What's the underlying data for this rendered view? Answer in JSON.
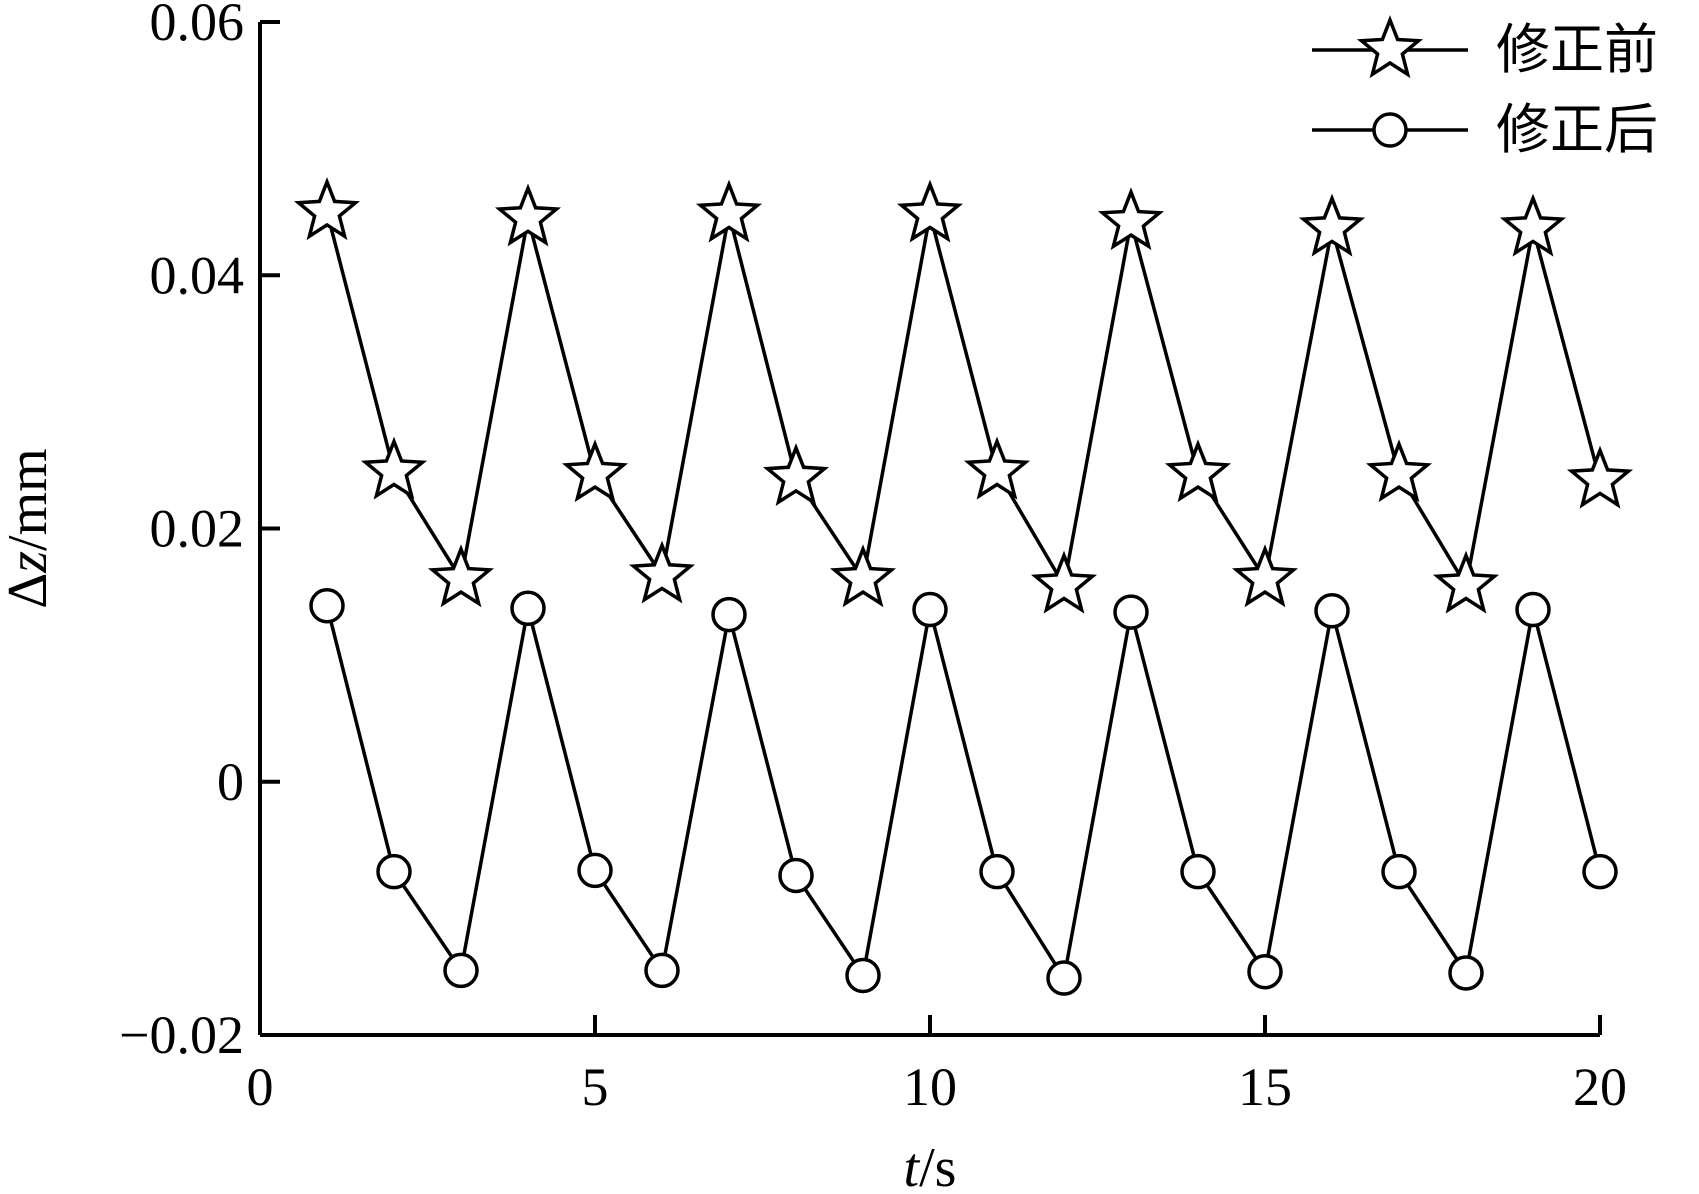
{
  "chart_data": {
    "type": "line",
    "title": "",
    "xlabel": {
      "italic": "t",
      "rest": "/s"
    },
    "ylabel": {
      "prefix": "Δ",
      "italic": "z",
      "rest": "/mm"
    },
    "xlim": [
      0,
      20
    ],
    "ylim": [
      -0.02,
      0.06
    ],
    "xticks": [
      0,
      5,
      10,
      15,
      20
    ],
    "xtick_labels": [
      "0",
      "5",
      "10",
      "15",
      "20"
    ],
    "yticks": [
      -0.02,
      0,
      0.02,
      0.04,
      0.06
    ],
    "ytick_labels": [
      "−0.02",
      "0",
      "0.02",
      "0.04",
      "0.06"
    ],
    "grid": false,
    "legend_position": "top-right",
    "x": [
      1,
      2,
      3,
      4,
      5,
      6,
      7,
      8,
      9,
      10,
      11,
      12,
      13,
      14,
      15,
      16,
      17,
      18,
      19,
      20
    ],
    "series": [
      {
        "name": "修正前",
        "marker": "star",
        "values": [
          0.045,
          0.0245,
          0.016,
          0.0445,
          0.0243,
          0.0163,
          0.0448,
          0.024,
          0.016,
          0.0448,
          0.0245,
          0.0155,
          0.0442,
          0.0243,
          0.016,
          0.0437,
          0.0243,
          0.0155,
          0.0437,
          0.0238
        ]
      },
      {
        "name": "修正后",
        "marker": "circle",
        "values": [
          0.0139,
          -0.0071,
          -0.0149,
          0.0137,
          -0.007,
          -0.0149,
          0.0132,
          -0.0074,
          -0.0153,
          0.0136,
          -0.0071,
          -0.0155,
          0.0134,
          -0.0071,
          -0.015,
          0.0135,
          -0.0071,
          -0.0151,
          0.0136,
          -0.0071
        ]
      }
    ]
  }
}
